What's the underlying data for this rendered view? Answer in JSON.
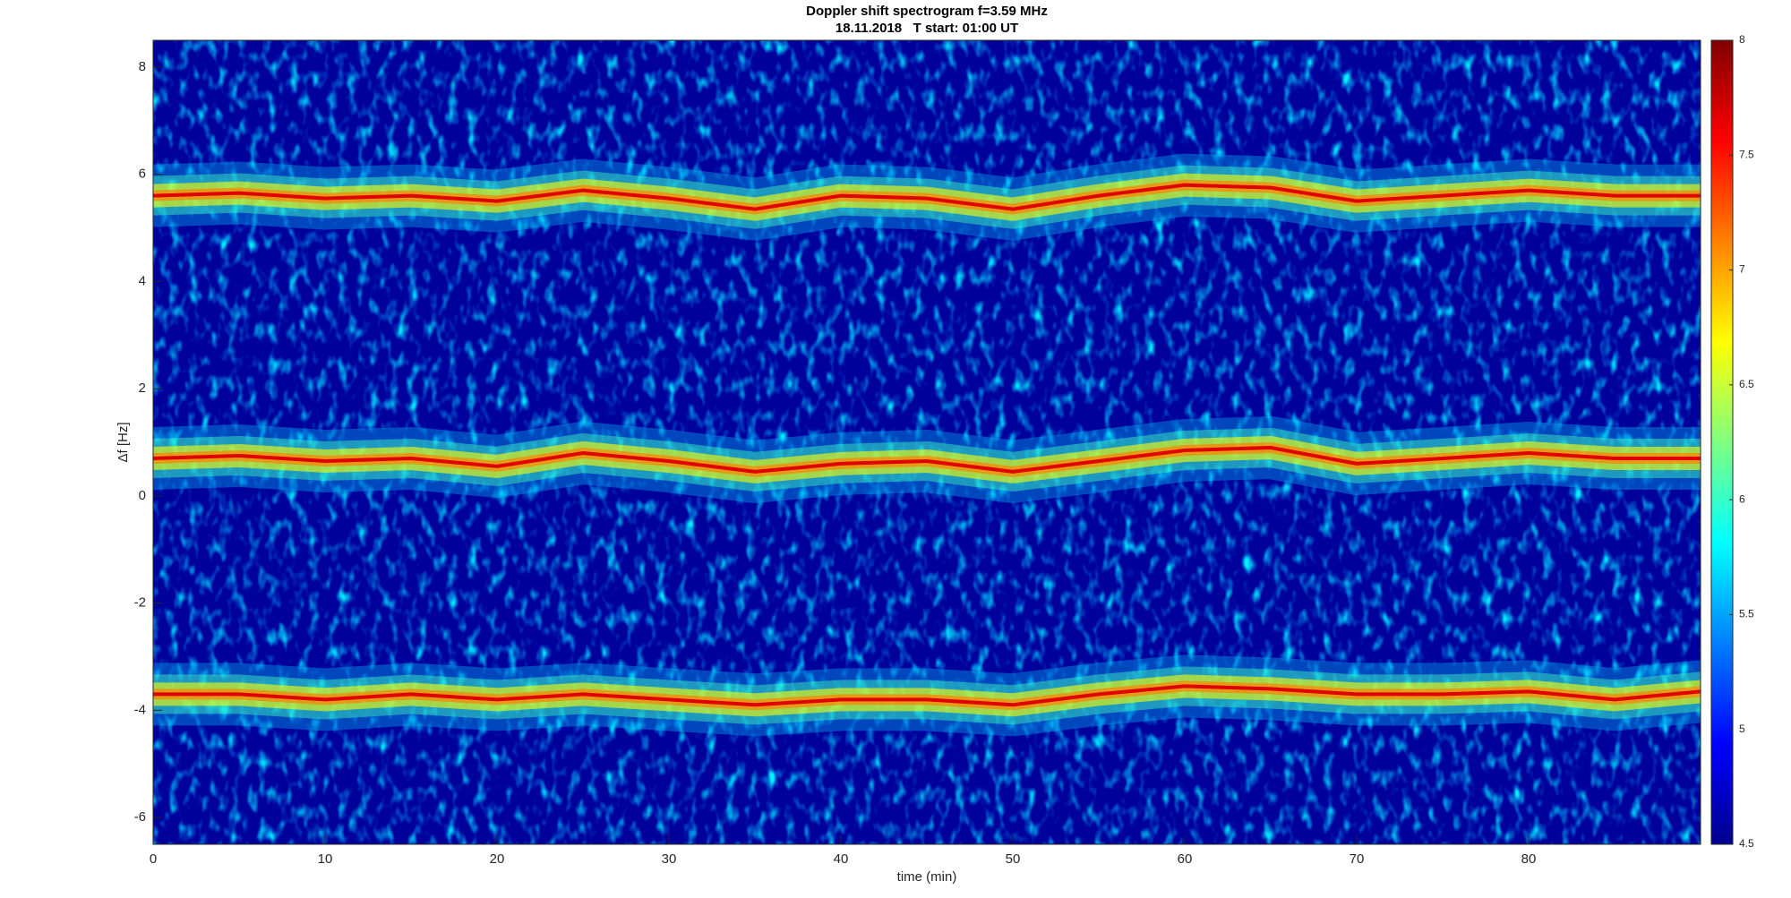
{
  "chart_data": {
    "type": "spectrogram",
    "title": "Doppler shift spectrogram f=3.59 MHz",
    "subtitle": "18.11.2018   T start: 01:00 UT",
    "x_label": "time (min)",
    "y_label": "Δf [Hz]",
    "x": [
      0,
      5,
      10,
      15,
      20,
      25,
      30,
      35,
      40,
      45,
      50,
      55,
      60,
      65,
      70,
      75,
      80,
      85,
      90
    ],
    "series": [
      {
        "color": "#e00000",
        "values": [
          5.6,
          5.65,
          5.55,
          5.6,
          5.5,
          5.7,
          5.55,
          5.35,
          5.6,
          5.55,
          5.35,
          5.6,
          5.8,
          5.75,
          5.5,
          5.6,
          5.7,
          5.6,
          5.6
        ]
      },
      {
        "color": "#e00000",
        "values": [
          0.7,
          0.75,
          0.65,
          0.7,
          0.55,
          0.8,
          0.65,
          0.45,
          0.6,
          0.65,
          0.45,
          0.65,
          0.85,
          0.9,
          0.6,
          0.7,
          0.8,
          0.7,
          0.7
        ]
      },
      {
        "color": "#e00000",
        "values": [
          -3.7,
          -3.7,
          -3.8,
          -3.7,
          -3.8,
          -3.7,
          -3.8,
          -3.9,
          -3.8,
          -3.8,
          -3.9,
          -3.7,
          -3.55,
          -3.6,
          -3.7,
          -3.7,
          -3.65,
          -3.8,
          -3.65
        ]
      }
    ],
    "xlim": [
      0,
      90
    ],
    "xticks": [
      0,
      10,
      20,
      30,
      40,
      50,
      60,
      70,
      80
    ],
    "ylim": [
      -6.5,
      8.5
    ],
    "yticks": [
      -6,
      -4,
      -2,
      0,
      2,
      4,
      6,
      8
    ],
    "clim": [
      4.5,
      8
    ],
    "cticks": [
      4.5,
      5,
      5.5,
      6,
      6.5,
      7,
      7.5,
      8
    ],
    "colormap": "jet"
  }
}
